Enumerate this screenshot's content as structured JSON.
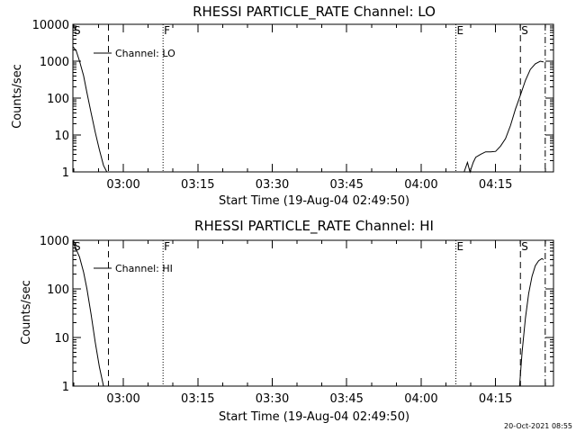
{
  "chart_data": [
    {
      "type": "line",
      "title": "RHESSI PARTICLE_RATE Channel: LO",
      "xlabel": "Start Time (19-Aug-04 02:49:50)",
      "ylabel": "Counts/sec",
      "yscale": "log",
      "ylim": [
        1,
        10000
      ],
      "y_ticks": [
        1,
        10,
        100,
        1000,
        10000
      ],
      "y_tick_labels": [
        "1",
        "10",
        "100",
        "1000",
        "10000"
      ],
      "xlim": [
        "02:49:50",
        "04:26:40"
      ],
      "x_tick_times": [
        "03:00",
        "03:15",
        "03:30",
        "03:45",
        "04:00",
        "04:15"
      ],
      "x_tick_labels": [
        "03:00",
        "03:15",
        "03:30",
        "03:45",
        "04:00",
        "04:15"
      ],
      "legend": {
        "entry": "Channel: LO",
        "placement": "top-left"
      },
      "markers": [
        {
          "label": "S",
          "time": "02:49:50",
          "style": "dotted"
        },
        {
          "label": "",
          "time": "02:57:00",
          "style": "dashed"
        },
        {
          "label": "F",
          "time": "03:08:00",
          "style": "dotted"
        },
        {
          "label": "E",
          "time": "04:07:00",
          "style": "dotted"
        },
        {
          "label": "S",
          "time": "04:20:00",
          "style": "dashed"
        },
        {
          "label": "",
          "time": "04:25:00",
          "style": "dashdot"
        }
      ],
      "series": [
        {
          "segments": [
            {
              "x": [
                "02:49:50",
                "02:50:30",
                "02:51:10",
                "02:52:00",
                "02:52:40",
                "02:53:30",
                "02:54:20",
                "02:55:10",
                "02:56:00",
                "02:56:40"
              ],
              "y": [
                2500,
                1900,
                1000,
                400,
                140,
                40,
                12,
                4,
                1.5,
                1
              ]
            },
            {
              "x": [
                "04:08:00",
                "04:08:40",
                "04:09:20",
                "04:09:50",
                "04:10:30",
                "04:11:00",
                "04:12:00",
                "04:13:00",
                "04:14:00",
                "04:15:00",
                "04:16:00",
                "04:17:00",
                "04:18:00",
                "04:19:00",
                "04:20:00",
                "04:21:00",
                "04:22:00",
                "04:23:00",
                "04:24:00",
                "04:24:40"
              ],
              "y": [
                1,
                1,
                1.8,
                1,
                1.8,
                2.5,
                3,
                3.5,
                3.5,
                3.6,
                5,
                8,
                18,
                50,
                120,
                300,
                600,
                850,
                1000,
                950
              ]
            }
          ]
        }
      ]
    },
    {
      "type": "line",
      "title": "RHESSI PARTICLE_RATE Channel: HI",
      "xlabel": "Start Time (19-Aug-04 02:49:50)",
      "ylabel": "Counts/sec",
      "yscale": "log",
      "ylim": [
        1,
        1000
      ],
      "y_ticks": [
        1,
        10,
        100,
        1000
      ],
      "y_tick_labels": [
        "1",
        "10",
        "100",
        "1000"
      ],
      "xlim": [
        "02:49:50",
        "04:26:40"
      ],
      "x_tick_times": [
        "03:00",
        "03:15",
        "03:30",
        "03:45",
        "04:00",
        "04:15"
      ],
      "x_tick_labels": [
        "03:00",
        "03:15",
        "03:30",
        "03:45",
        "04:00",
        "04:15"
      ],
      "legend": {
        "entry": "Channel: HI",
        "placement": "top-left"
      },
      "markers": [
        {
          "label": "S",
          "time": "02:49:50",
          "style": "dotted"
        },
        {
          "label": "",
          "time": "02:57:00",
          "style": "dashed"
        },
        {
          "label": "F",
          "time": "03:08:00",
          "style": "dotted"
        },
        {
          "label": "E",
          "time": "04:07:00",
          "style": "dotted"
        },
        {
          "label": "S",
          "time": "04:20:00",
          "style": "dashed"
        },
        {
          "label": "",
          "time": "04:25:00",
          "style": "dashdot"
        }
      ],
      "series": [
        {
          "segments": [
            {
              "x": [
                "02:49:50",
                "02:50:30",
                "02:51:10",
                "02:52:00",
                "02:52:40",
                "02:53:30",
                "02:54:20",
                "02:55:10",
                "02:56:00"
              ],
              "y": [
                900,
                650,
                450,
                220,
                100,
                30,
                8,
                2.5,
                1
              ]
            },
            {
              "x": [
                "04:19:50",
                "04:20:20",
                "04:21:00",
                "04:21:40",
                "04:22:20",
                "04:23:00",
                "04:23:40",
                "04:24:20",
                "04:24:40"
              ],
              "y": [
                1,
                5,
                25,
                80,
                180,
                300,
                380,
                420,
                400
              ]
            }
          ]
        }
      ]
    }
  ],
  "footer": {
    "timestamp": "20-Oct-2021 08:55"
  }
}
